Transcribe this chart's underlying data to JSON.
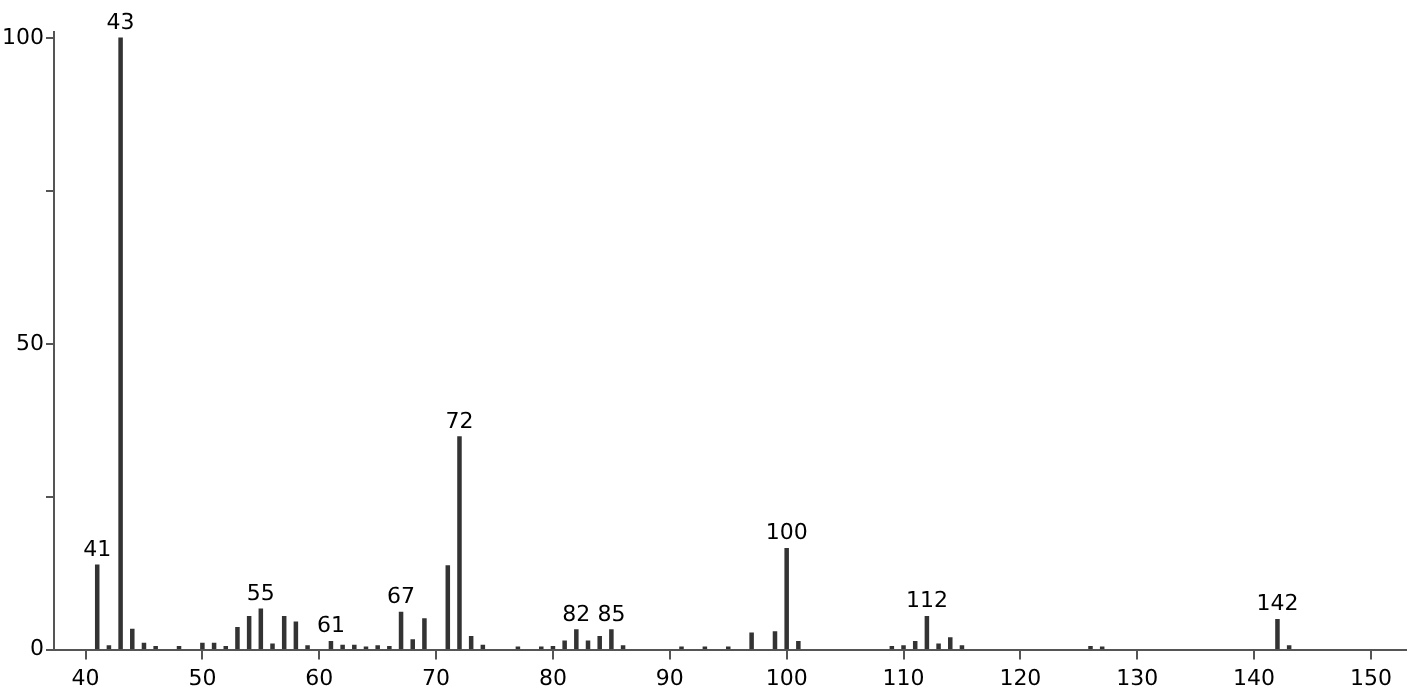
{
  "chart_data": {
    "type": "bar",
    "color": "#333333",
    "x": [
      41,
      42,
      43,
      44,
      45,
      46,
      48,
      50,
      51,
      52,
      53,
      54,
      55,
      56,
      57,
      58,
      59,
      61,
      62,
      63,
      64,
      65,
      66,
      67,
      68,
      69,
      71,
      72,
      73,
      74,
      77,
      79,
      80,
      81,
      82,
      83,
      84,
      85,
      86,
      91,
      93,
      95,
      97,
      99,
      100,
      101,
      109,
      110,
      111,
      112,
      113,
      114,
      115,
      126,
      127,
      142,
      143
    ],
    "values": [
      13.8,
      0.6,
      100,
      3.3,
      1,
      0.5,
      0.5,
      1,
      1,
      0.5,
      3.6,
      5.4,
      6.6,
      0.9,
      5.4,
      4.5,
      0.6,
      1.3,
      0.7,
      0.7,
      0.4,
      0.6,
      0.5,
      6.1,
      1.6,
      5,
      13.7,
      34.8,
      2.1,
      0.7,
      0.4,
      0.4,
      0.5,
      1.4,
      3.2,
      1.4,
      2.1,
      3.2,
      0.6,
      0.4,
      0.4,
      0.4,
      2.7,
      2.9,
      16.5,
      1.3,
      0.5,
      0.6,
      1.3,
      5.4,
      0.9,
      1.9,
      0.6,
      0.5,
      0.4,
      4.9,
      0.6
    ],
    "annotations": [
      {
        "text": "41",
        "x": 41,
        "y": 13.8
      },
      {
        "text": "43",
        "x": 43,
        "y": 100
      },
      {
        "text": "55",
        "x": 55,
        "y": 6.6
      },
      {
        "text": "61",
        "x": 61,
        "y": 1.3
      },
      {
        "text": "67",
        "x": 67,
        "y": 6.1
      },
      {
        "text": "72",
        "x": 72,
        "y": 34.8
      },
      {
        "text": "82",
        "x": 82,
        "y": 3.2
      },
      {
        "text": "85",
        "x": 85,
        "y": 3.2
      },
      {
        "text": "100",
        "x": 100,
        "y": 16.5
      },
      {
        "text": "112",
        "x": 112,
        "y": 5.4
      },
      {
        "text": "142",
        "x": 142,
        "y": 4.9
      }
    ],
    "xlim": [
      37.3,
      153
    ],
    "xticks": [
      40,
      50,
      60,
      70,
      80,
      90,
      100,
      110,
      120,
      130,
      140,
      150
    ],
    "ylim": [
      0,
      101
    ],
    "yticks": [
      0,
      {
        "value": 25,
        "label": null
      },
      50,
      {
        "value": 75,
        "label": null
      },
      100
    ],
    "grid": false,
    "legend": false
  }
}
